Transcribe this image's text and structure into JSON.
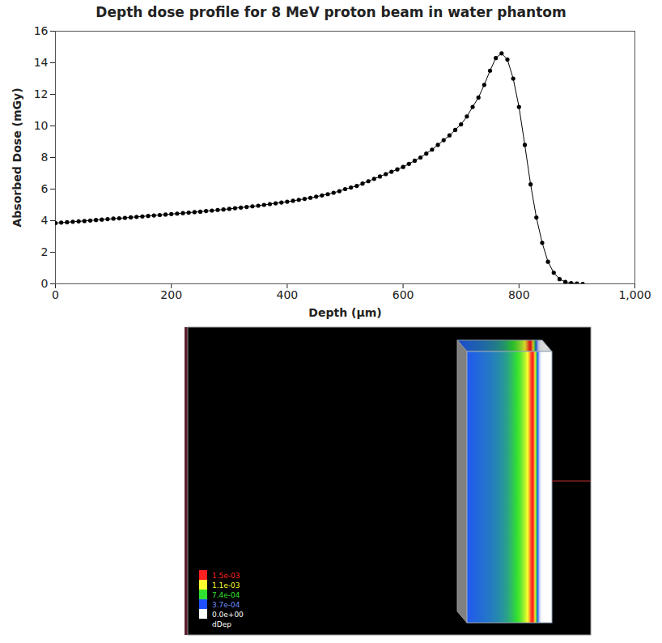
{
  "chart_data": {
    "type": "line",
    "title": "Depth dose profile for 8 MeV proton beam in water phantom",
    "x_label": "Depth (µm)",
    "y_label": "Absorbed Dose (mGy)",
    "color": "#000000",
    "marker": "circle",
    "grid": false,
    "x": [
      0,
      10,
      20,
      30,
      40,
      50,
      60,
      70,
      80,
      90,
      100,
      110,
      120,
      130,
      140,
      150,
      160,
      170,
      180,
      190,
      200,
      210,
      220,
      230,
      240,
      250,
      260,
      270,
      280,
      290,
      300,
      310,
      320,
      330,
      340,
      350,
      360,
      370,
      380,
      390,
      400,
      410,
      420,
      430,
      440,
      450,
      460,
      470,
      480,
      490,
      500,
      510,
      520,
      530,
      540,
      550,
      560,
      570,
      580,
      590,
      600,
      610,
      620,
      630,
      640,
      650,
      660,
      670,
      680,
      690,
      700,
      710,
      720,
      730,
      740,
      750,
      760,
      770,
      780,
      790,
      800,
      810,
      820,
      830,
      840,
      850,
      860,
      870,
      880,
      890,
      900,
      910
    ],
    "values": [
      3.85,
      3.88,
      3.9,
      3.93,
      3.96,
      3.98,
      4.01,
      4.04,
      4.07,
      4.1,
      4.13,
      4.15,
      4.18,
      4.21,
      4.24,
      4.27,
      4.3,
      4.33,
      4.36,
      4.39,
      4.42,
      4.45,
      4.48,
      4.51,
      4.54,
      4.57,
      4.61,
      4.64,
      4.68,
      4.71,
      4.75,
      4.79,
      4.83,
      4.87,
      4.91,
      4.95,
      5.0,
      5.05,
      5.1,
      5.15,
      5.2,
      5.26,
      5.32,
      5.38,
      5.45,
      5.52,
      5.6,
      5.68,
      5.77,
      5.87,
      6.0,
      6.1,
      6.2,
      6.35,
      6.5,
      6.65,
      6.8,
      6.95,
      7.1,
      7.25,
      7.4,
      7.6,
      7.8,
      8.0,
      8.25,
      8.5,
      8.8,
      9.1,
      9.4,
      9.75,
      10.1,
      10.6,
      11.2,
      11.8,
      12.6,
      13.5,
      14.3,
      14.6,
      14.2,
      13.0,
      11.2,
      8.8,
      6.3,
      4.2,
      2.6,
      1.4,
      0.7,
      0.3,
      0.12,
      0.05,
      0.02,
      0
    ],
    "xlim": [
      0,
      1000
    ],
    "xticks": [
      0,
      200,
      400,
      600,
      800,
      {
        "value": 1000,
        "label": "1,000"
      }
    ],
    "ylim": [
      0,
      16
    ],
    "yticks": [
      0,
      2,
      4,
      6,
      8,
      10,
      12,
      14,
      16
    ]
  },
  "visualization": {
    "colorbar": {
      "label": "dDep",
      "ticks": [
        {
          "value": 0.0015,
          "label": "1.5e-03"
        },
        {
          "value": 0.0011,
          "label": "1.1e-03"
        },
        {
          "value": 0.00074,
          "label": "7.4e-04"
        },
        {
          "value": 0.00037,
          "label": "3.7e-04"
        },
        {
          "value": 0,
          "label": "0.0e+00"
        }
      ],
      "colors": [
        "#ff2020",
        "#ffff30",
        "#30e030",
        "#2050ff",
        "#ffffff"
      ]
    }
  }
}
